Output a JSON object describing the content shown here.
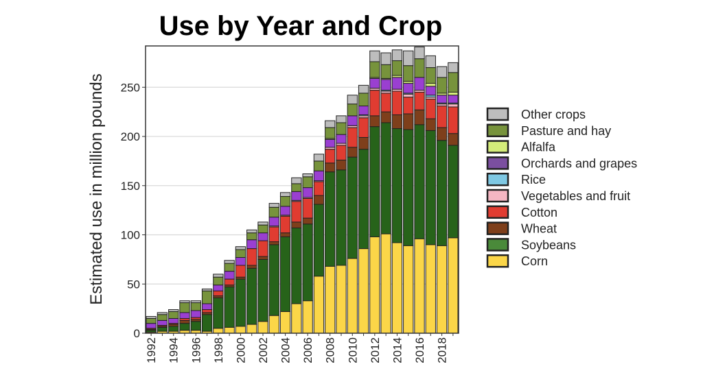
{
  "chart_data": {
    "type": "bar",
    "stacked": true,
    "title": "Use by Year and Crop",
    "xlabel": "",
    "ylabel": "Estimated use in million pounds",
    "ylim": [
      0,
      292
    ],
    "yticks": [
      0,
      50,
      100,
      150,
      200,
      250
    ],
    "grid": "horizontal",
    "legend_position": "right",
    "categories": [
      1992,
      1993,
      1994,
      1995,
      1996,
      1997,
      1998,
      1999,
      2000,
      2001,
      2002,
      2003,
      2004,
      2005,
      2006,
      2007,
      2008,
      2009,
      2010,
      2011,
      2012,
      2013,
      2014,
      2015,
      2016,
      2017,
      2018,
      2019
    ],
    "xtick_labels": [
      "1992",
      "1994",
      "1996",
      "1998",
      "2000",
      "2002",
      "2004",
      "2006",
      "2008",
      "2010",
      "2012",
      "2014",
      "2016",
      "2018"
    ],
    "series": [
      {
        "name": "Corn",
        "color": "#fbd648",
        "values": [
          1,
          2,
          2,
          3,
          3,
          2,
          5,
          6,
          7,
          9,
          12,
          18,
          22,
          30,
          33,
          58,
          68,
          69,
          76,
          86,
          98,
          101,
          92,
          89,
          96,
          90,
          89,
          97
        ]
      },
      {
        "name": "Soybeans",
        "color": "#27631a",
        "legend_color": "#4a8a3a",
        "values": [
          2,
          4,
          5,
          7,
          9,
          17,
          31,
          41,
          48,
          57,
          63,
          72,
          76,
          77,
          78,
          73,
          96,
          97,
          103,
          101,
          112,
          113,
          116,
          118,
          116,
          116,
          107,
          94
        ]
      },
      {
        "name": "Wheat",
        "color": "#7e3f1b",
        "values": [
          1,
          1,
          2,
          3,
          2,
          2,
          2,
          2,
          2,
          3,
          3,
          3,
          4,
          6,
          6,
          9,
          9,
          10,
          10,
          12,
          11,
          11,
          14,
          16,
          15,
          12,
          13,
          12
        ]
      },
      {
        "name": "Cotton",
        "color": "#e03c31",
        "values": [
          1,
          1,
          1,
          2,
          2,
          3,
          5,
          6,
          12,
          17,
          16,
          15,
          17,
          21,
          20,
          14,
          14,
          15,
          20,
          20,
          26,
          19,
          24,
          17,
          18,
          20,
          22,
          27
        ]
      },
      {
        "name": "Vegetables and fruit",
        "color": "#f4b6c2",
        "values": [
          0,
          0,
          0,
          0,
          0,
          0,
          0,
          0,
          0,
          0,
          0,
          1,
          1,
          1,
          1,
          1,
          2,
          2,
          2,
          2,
          2,
          2,
          2,
          3,
          2,
          2,
          2,
          3
        ]
      },
      {
        "name": "Rice",
        "color": "#7ec8e3",
        "values": [
          0,
          0,
          0,
          0,
          0,
          0,
          0,
          0,
          0,
          0,
          0,
          0,
          0,
          0,
          0,
          0,
          0,
          0,
          0,
          1,
          0,
          1,
          0,
          1,
          0,
          2,
          1,
          1
        ]
      },
      {
        "name": "Orchards and grapes",
        "color": "#9a3fd1",
        "legend_color": "#7b4fa0",
        "values": [
          5,
          5,
          5,
          6,
          7,
          6,
          6,
          8,
          8,
          9,
          8,
          9,
          9,
          9,
          10,
          10,
          8,
          9,
          10,
          9,
          10,
          11,
          12,
          10,
          13,
          9,
          8,
          8
        ]
      },
      {
        "name": "Alfalfa",
        "color": "#d4ec7a",
        "values": [
          0,
          0,
          0,
          0,
          0,
          0,
          0,
          0,
          0,
          0,
          0,
          0,
          0,
          0,
          0,
          0,
          1,
          0,
          0,
          0,
          1,
          1,
          2,
          2,
          0,
          3,
          2,
          3
        ]
      },
      {
        "name": "Pasture and hay",
        "color": "#77933c",
        "values": [
          5,
          6,
          7,
          10,
          8,
          13,
          8,
          8,
          8,
          7,
          8,
          10,
          10,
          8,
          11,
          10,
          11,
          12,
          12,
          13,
          16,
          14,
          15,
          16,
          19,
          16,
          16,
          20
        ]
      },
      {
        "name": "Other crops",
        "color": "#bdbdbd",
        "values": [
          2,
          2,
          2,
          2,
          2,
          2,
          3,
          3,
          3,
          3,
          3,
          4,
          4,
          6,
          3,
          7,
          7,
          7,
          9,
          8,
          11,
          12,
          11,
          15,
          12,
          12,
          11,
          10
        ]
      }
    ]
  }
}
